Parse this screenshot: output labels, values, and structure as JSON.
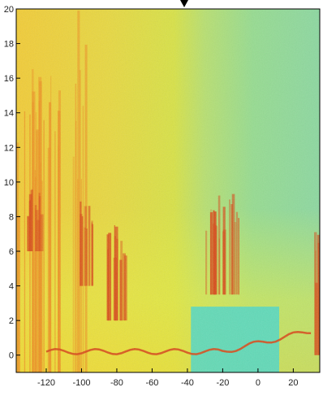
{
  "chart_data": {
    "type": "heatmap",
    "title": "",
    "xlabel": "",
    "ylabel": "",
    "xlim": [
      -137,
      35
    ],
    "ylim": [
      -1,
      20
    ],
    "x_ticks": [
      -120,
      -100,
      -80,
      -60,
      -40,
      -20,
      0,
      20
    ],
    "y_ticks": [
      0,
      2,
      4,
      6,
      8,
      10,
      12,
      14,
      16,
      18,
      20
    ],
    "x_tick_labels": [
      "-120",
      "-100",
      "-80",
      "-60",
      "-40",
      "-20",
      "0",
      "20"
    ],
    "y_tick_labels": [
      "0",
      "2",
      "4",
      "6",
      "8",
      "10",
      "12",
      "14",
      "16",
      "18",
      "20"
    ],
    "grid": false,
    "colormap": [
      "#4fd8c8",
      "#9fe080",
      "#e8ec40",
      "#f4c02c",
      "#ee8c20",
      "#d64818"
    ],
    "background_colors": {
      "left_region": "#f0d03a",
      "center_region": "#d8e448",
      "right_region": "#8ed89c"
    },
    "features": [
      {
        "name": "streaks-left",
        "x": [
          -137,
          -113
        ],
        "y": [
          -1,
          17
        ],
        "level": "orange"
      },
      {
        "name": "streaks-mid",
        "x": [
          -106,
          -98
        ],
        "y": [
          -1,
          20
        ],
        "level": "orange"
      },
      {
        "name": "plume-a",
        "x": [
          -133,
          -122
        ],
        "y": [
          6,
          9.6
        ],
        "level": "red"
      },
      {
        "name": "plume-b",
        "x": [
          -103,
          -94
        ],
        "y": [
          4,
          9
        ],
        "level": "red"
      },
      {
        "name": "plume-c",
        "x": [
          -86,
          -74
        ],
        "y": [
          2,
          8.5
        ],
        "level": "red"
      },
      {
        "name": "plume-d",
        "x": [
          -30,
          -10
        ],
        "y": [
          3.5,
          9.6
        ],
        "level": "red"
      },
      {
        "name": "plume-e",
        "x": [
          31,
          35
        ],
        "y": [
          0,
          7.8
        ],
        "level": "red"
      },
      {
        "name": "low-band-cyan",
        "x": [
          -38,
          12
        ],
        "y": [
          -1,
          2.8
        ],
        "level": "cyan"
      },
      {
        "name": "surface-line",
        "x": [
          -120,
          30
        ],
        "y": [
          0,
          1
        ],
        "level": "red"
      }
    ]
  }
}
